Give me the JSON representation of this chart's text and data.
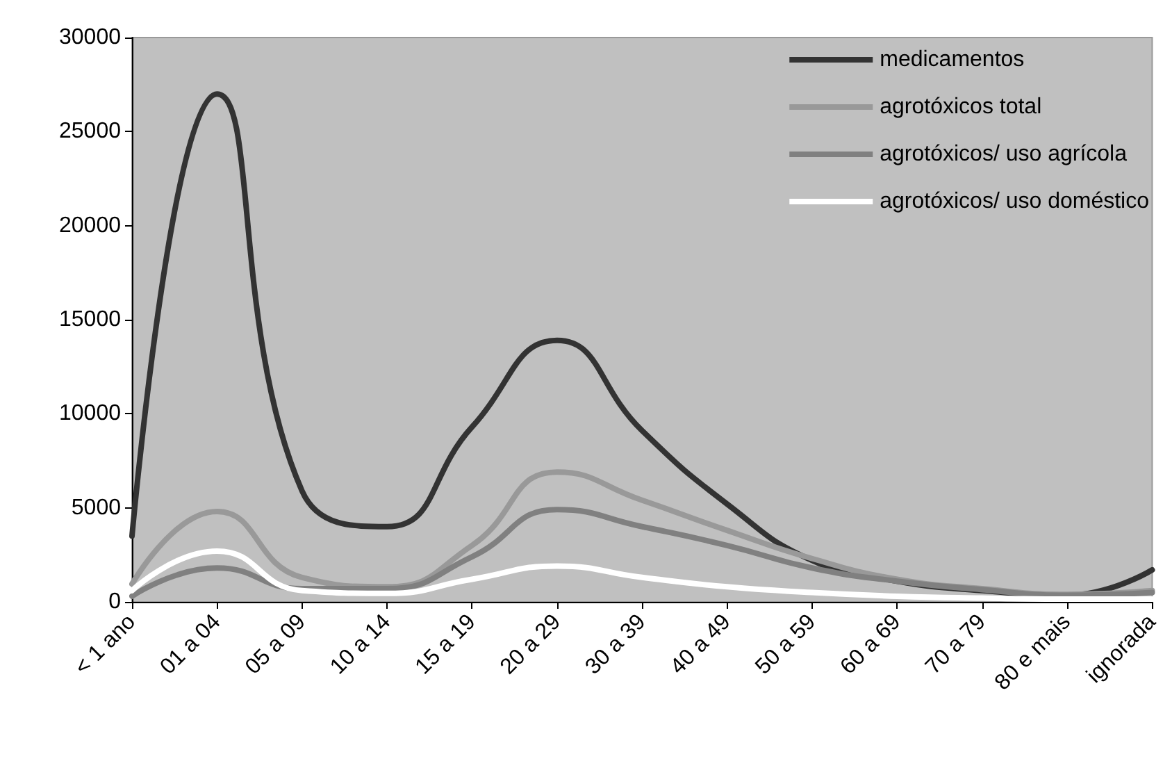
{
  "chart_data": {
    "type": "line",
    "categories": [
      "< 1 ano",
      "01 a 04",
      "05 a 09",
      "10 a 14",
      "15 a 19",
      "20 a 29",
      "30 a 39",
      "40 a 49",
      "50 a 59",
      "60 a 69",
      "70 a 79",
      "80 e mais",
      "ignorada"
    ],
    "series": [
      {
        "name": "medicamentos",
        "color": "#333333",
        "values": [
          3500,
          27000,
          5900,
          4000,
          9300,
          13900,
          9100,
          5200,
          2200,
          1100,
          600,
          350,
          1700
        ]
      },
      {
        "name": "agrotóxicos total",
        "color": "#999999",
        "values": [
          950,
          4800,
          1300,
          800,
          3000,
          6900,
          5400,
          3800,
          2300,
          1200,
          700,
          400,
          600
        ]
      },
      {
        "name": "agrotóxicos/ uso agrícola",
        "color": "#808080",
        "values": [
          300,
          1800,
          700,
          700,
          2400,
          4900,
          4000,
          3000,
          1800,
          1100,
          650,
          350,
          500
        ]
      },
      {
        "name": "agrotóxicos/ uso doméstico",
        "color": "#ffffff",
        "values": [
          600,
          2700,
          600,
          450,
          1200,
          1900,
          1300,
          800,
          500,
          300,
          200,
          150,
          150
        ]
      }
    ],
    "ylim": [
      0,
      30000
    ],
    "yticks": [
      0,
      5000,
      10000,
      15000,
      20000,
      25000,
      30000
    ],
    "legend": "top right"
  }
}
